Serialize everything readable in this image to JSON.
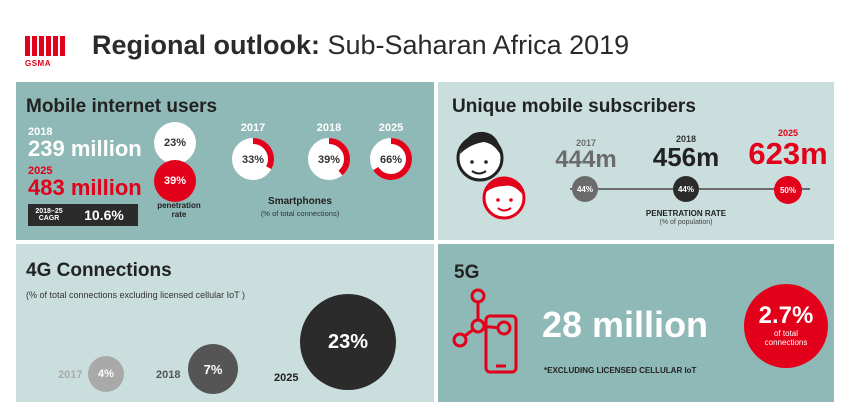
{
  "header": {
    "logo_text": "GSMA",
    "title_bold": "Regional outlook:",
    "title_rest": " Sub-Saharan Africa 2019"
  },
  "mobile_internet": {
    "heading": "Mobile internet users",
    "year_a": "2018",
    "value_a": "239 million",
    "pct_a": "23%",
    "year_b": "2025",
    "value_b": "483 million",
    "pct_b": "39%",
    "penetration_label": "penetration rate",
    "cagr_label": "2018–25 CAGR",
    "cagr_value": "10.6%",
    "smartphones": {
      "heading": "Smartphones",
      "subheading": "(% of total connections)",
      "items": [
        {
          "year": "2017",
          "value": "33%",
          "fraction": 0.33
        },
        {
          "year": "2018",
          "value": "39%",
          "fraction": 0.39
        },
        {
          "year": "2025",
          "value": "66%",
          "fraction": 0.66
        }
      ]
    }
  },
  "unique_subscribers": {
    "heading": "Unique mobile subscribers",
    "items": [
      {
        "year": "2017",
        "value": "444m",
        "rate": "44%"
      },
      {
        "year": "2018",
        "value": "456m",
        "rate": "44%"
      },
      {
        "year": "2025",
        "value": "623m",
        "rate": "50%"
      }
    ],
    "rate_label": "PENETRATION RATE",
    "rate_sub": "(% of population)"
  },
  "connections_4g": {
    "heading": "4G Connections",
    "subheading": "(% of total connections excluding licensed cellular IoT )",
    "items": [
      {
        "year": "2017",
        "value": "4%"
      },
      {
        "year": "2018",
        "value": "7%"
      },
      {
        "year": "2025",
        "value": "23%"
      }
    ]
  },
  "fiveg": {
    "heading": "5G",
    "value": "28 million",
    "note": "*EXCLUDING LICENSED CELLULAR IoT",
    "pct": "2.7%",
    "pct_label": "of total connections"
  },
  "colors": {
    "red": "#e2001a",
    "teal_dark": "#8fb9b6",
    "teal_light": "#cadfdd",
    "charcoal": "#2b2b2b"
  }
}
